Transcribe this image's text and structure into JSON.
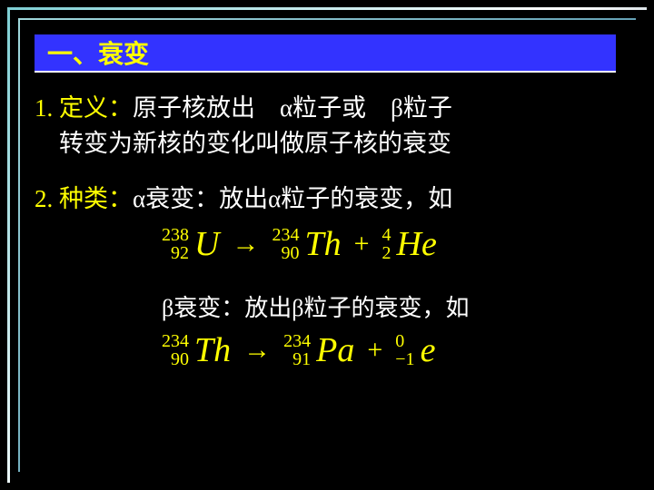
{
  "header": {
    "title": "一、衰变"
  },
  "def": {
    "num": "1.",
    "label": "定义：",
    "line1": "原子核放出　α粒子或　β粒子",
    "line2": "　转变为新核的变化叫做原子核的衰变"
  },
  "types": {
    "num": "2.",
    "label": "种类：",
    "alpha_text": "α衰变：放出α粒子的衰变，如",
    "beta_text": "β衰变：放出β粒子的衰变，如"
  },
  "eq1": {
    "r1": {
      "mass": "238",
      "atomic": "92",
      "sym": "U"
    },
    "arrow": "→",
    "p1": {
      "mass": "234",
      "atomic": "90",
      "sym": "Th"
    },
    "plus": "+",
    "p2": {
      "mass": "4",
      "atomic": "2",
      "sym": "He"
    }
  },
  "eq2": {
    "r1": {
      "mass": "234",
      "atomic": "90",
      "sym": "Th"
    },
    "arrow": "→",
    "p1": {
      "mass": "234",
      "atomic": "91",
      "sym": "Pa"
    },
    "plus": "+",
    "p2": {
      "mass": "0",
      "atomic": "−1",
      "sym": "e"
    }
  },
  "style": {
    "bg": "#000000",
    "header_bg": "#3333ff",
    "accent": "#ffff00",
    "text": "#ffffff",
    "title_fontsize": 28,
    "body_fontsize": 27,
    "equation_fontsize": 34,
    "symbol_fontsize": 38,
    "script_fontsize": 20
  }
}
